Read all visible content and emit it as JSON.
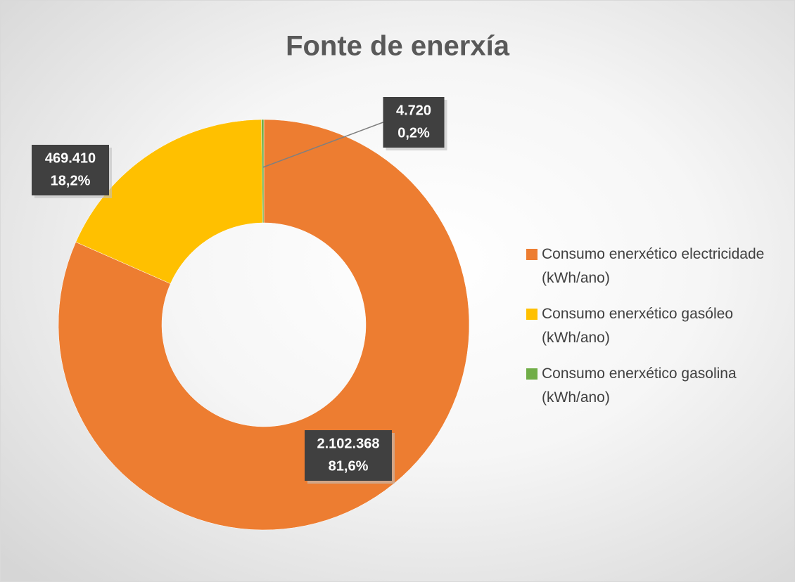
{
  "chart_data": {
    "type": "donut",
    "title": "Fonte de enerxía",
    "categories": [
      "Consumo enerxético electricidade (kWh/ano)",
      "Consumo enerxético gasóleo (kWh/ano)",
      "Consumo enerxético gasolina (kWh/ano)"
    ],
    "values": [
      2102368,
      469410,
      4720
    ],
    "value_labels": [
      "2.102.368",
      "469.410",
      "4.720"
    ],
    "percent_labels": [
      "81,6%",
      "18,2%",
      "0,2%"
    ],
    "colors": [
      "#ED7D31",
      "#FFC000",
      "#70AD47"
    ],
    "legend": "right"
  }
}
